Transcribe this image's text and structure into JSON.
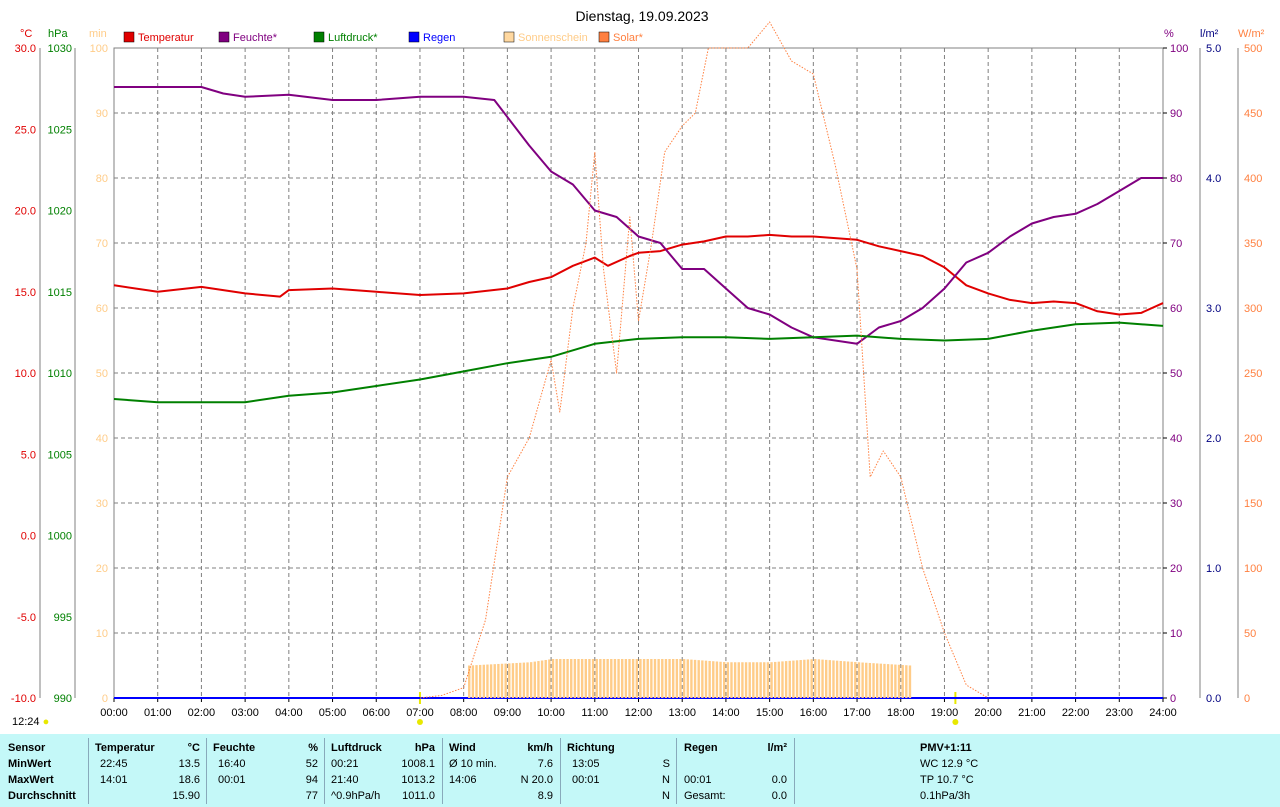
{
  "title": "Dienstag, 19.09.2023",
  "current_time": "12:24",
  "colors": {
    "temperature": "#e00000",
    "humidity": "#800080",
    "pressure": "#008000",
    "rain": "#0000ff",
    "sunshine": "#ffcc88",
    "solar": "#ff8040",
    "stats_bg": "#c4f8f8"
  },
  "legend": [
    {
      "label": "Temperatur",
      "color": "#e00000"
    },
    {
      "label": "Feuchte*",
      "color": "#800080"
    },
    {
      "label": "Luftdruck*",
      "color": "#008000"
    },
    {
      "label": "Regen",
      "color": "#0000ff"
    },
    {
      "label": "Sonnenschein",
      "color": "#ffd8a0"
    },
    {
      "label": "Solar*",
      "color": "#ff8040"
    }
  ],
  "axes": {
    "temp": {
      "unit": "°C",
      "ticks": [
        "30.0",
        "25.0",
        "20.0",
        "15.0",
        "10.0",
        "5.0",
        "0.0",
        "-5.0",
        "-10.0"
      ]
    },
    "pressure": {
      "unit": "hPa",
      "ticks": [
        "1030",
        "1025",
        "1020",
        "1015",
        "1010",
        "1005",
        "1000",
        "995",
        "990"
      ]
    },
    "sunshine": {
      "unit": "min",
      "ticks": [
        "100",
        "90",
        "80",
        "70",
        "60",
        "50",
        "40",
        "30",
        "20",
        "10",
        "0"
      ]
    },
    "humidity": {
      "unit": "%",
      "ticks": [
        "100",
        "90",
        "80",
        "70",
        "60",
        "50",
        "40",
        "30",
        "20",
        "10",
        "0"
      ]
    },
    "rain": {
      "unit": "l/m²",
      "ticks": [
        "5.0",
        "4.0",
        "3.0",
        "2.0",
        "1.0",
        "0.0"
      ]
    },
    "solar": {
      "unit": "W/m²",
      "ticks": [
        "500",
        "450",
        "400",
        "350",
        "300",
        "250",
        "200",
        "150",
        "100",
        "50",
        "0"
      ]
    },
    "x": {
      "ticks": [
        "00:00",
        "01:00",
        "02:00",
        "03:00",
        "04:00",
        "05:00",
        "06:00",
        "07:00",
        "08:00",
        "09:00",
        "10:00",
        "11:00",
        "12:00",
        "13:00",
        "14:00",
        "15:00",
        "16:00",
        "17:00",
        "18:00",
        "19:00",
        "20:00",
        "21:00",
        "22:00",
        "23:00",
        "24:00"
      ]
    }
  },
  "chart_data": {
    "type": "line",
    "title": "Dienstag, 19.09.2023",
    "x_range": [
      0,
      24
    ],
    "grid": true,
    "legend_position": "top",
    "series": [
      {
        "name": "Temperatur",
        "axis": "°C",
        "ylim": [
          -10,
          30
        ],
        "points": [
          [
            0,
            15.4
          ],
          [
            1,
            15.0
          ],
          [
            2,
            15.3
          ],
          [
            3,
            14.9
          ],
          [
            3.8,
            14.7
          ],
          [
            4,
            15.1
          ],
          [
            5,
            15.2
          ],
          [
            6,
            15.0
          ],
          [
            7,
            14.8
          ],
          [
            8,
            14.9
          ],
          [
            9,
            15.2
          ],
          [
            9.5,
            15.6
          ],
          [
            10,
            15.9
          ],
          [
            10.5,
            16.6
          ],
          [
            11,
            17.1
          ],
          [
            11.3,
            16.6
          ],
          [
            11.8,
            17.2
          ],
          [
            12,
            17.4
          ],
          [
            12.5,
            17.5
          ],
          [
            13,
            17.9
          ],
          [
            13.5,
            18.1
          ],
          [
            14,
            18.4
          ],
          [
            14.5,
            18.4
          ],
          [
            15,
            18.5
          ],
          [
            15.5,
            18.4
          ],
          [
            16,
            18.4
          ],
          [
            17,
            18.2
          ],
          [
            17.5,
            17.8
          ],
          [
            18,
            17.5
          ],
          [
            18.5,
            17.2
          ],
          [
            19,
            16.5
          ],
          [
            19.5,
            15.4
          ],
          [
            20,
            14.9
          ],
          [
            20.5,
            14.5
          ],
          [
            21,
            14.3
          ],
          [
            21.5,
            14.4
          ],
          [
            22,
            14.3
          ],
          [
            22.5,
            13.8
          ],
          [
            23,
            13.6
          ],
          [
            23.5,
            13.7
          ],
          [
            24,
            14.3
          ]
        ]
      },
      {
        "name": "Feuchte*",
        "axis": "%",
        "ylim": [
          0,
          100
        ],
        "points": [
          [
            0,
            94
          ],
          [
            1,
            94
          ],
          [
            2,
            94
          ],
          [
            2.5,
            93
          ],
          [
            3,
            92.5
          ],
          [
            4,
            92.8
          ],
          [
            5,
            92
          ],
          [
            6,
            92
          ],
          [
            7,
            92.5
          ],
          [
            8,
            92.5
          ],
          [
            8.7,
            92
          ],
          [
            9.5,
            85
          ],
          [
            10,
            81
          ],
          [
            10.5,
            79
          ],
          [
            11,
            75
          ],
          [
            11.5,
            74
          ],
          [
            12,
            71
          ],
          [
            12.5,
            70
          ],
          [
            13,
            66
          ],
          [
            13.5,
            66
          ],
          [
            14,
            63
          ],
          [
            14.5,
            60
          ],
          [
            15,
            59
          ],
          [
            15.5,
            57
          ],
          [
            16,
            55.5
          ],
          [
            16.5,
            55
          ],
          [
            17,
            54.5
          ],
          [
            17.5,
            57
          ],
          [
            18,
            58
          ],
          [
            18.5,
            60
          ],
          [
            19,
            63
          ],
          [
            19.5,
            67
          ],
          [
            20,
            68.5
          ],
          [
            20.5,
            71
          ],
          [
            21,
            73
          ],
          [
            21.5,
            74
          ],
          [
            22,
            74.5
          ],
          [
            22.5,
            76
          ],
          [
            23,
            78
          ],
          [
            23.5,
            80
          ],
          [
            24,
            80
          ]
        ]
      },
      {
        "name": "Luftdruck*",
        "axis": "hPa",
        "ylim": [
          990,
          1030
        ],
        "points": [
          [
            0,
            1008.4
          ],
          [
            1,
            1008.2
          ],
          [
            2,
            1008.2
          ],
          [
            3,
            1008.2
          ],
          [
            4,
            1008.6
          ],
          [
            5,
            1008.8
          ],
          [
            6,
            1009.2
          ],
          [
            7,
            1009.6
          ],
          [
            8,
            1010.1
          ],
          [
            9,
            1010.6
          ],
          [
            10,
            1011.0
          ],
          [
            11,
            1011.8
          ],
          [
            12,
            1012.1
          ],
          [
            13,
            1012.2
          ],
          [
            14,
            1012.2
          ],
          [
            15,
            1012.1
          ],
          [
            16,
            1012.2
          ],
          [
            17,
            1012.3
          ],
          [
            18,
            1012.1
          ],
          [
            19,
            1012.0
          ],
          [
            20,
            1012.1
          ],
          [
            21,
            1012.6
          ],
          [
            22,
            1013.0
          ],
          [
            23,
            1013.1
          ],
          [
            24,
            1012.9
          ]
        ]
      },
      {
        "name": "Regen",
        "axis": "l/m²",
        "ylim": [
          0,
          5
        ],
        "points": [
          [
            0,
            0
          ],
          [
            24,
            0
          ]
        ]
      },
      {
        "name": "Sonnenschein",
        "axis": "min",
        "ylim": [
          0,
          100
        ],
        "type": "bar",
        "points": [
          [
            8.1,
            5
          ],
          [
            9.5,
            5.5
          ],
          [
            10,
            6
          ],
          [
            11,
            6
          ],
          [
            12,
            6
          ],
          [
            13,
            6
          ],
          [
            14,
            5.5
          ],
          [
            15,
            5.5
          ],
          [
            16,
            6
          ],
          [
            17,
            5.5
          ],
          [
            18.2,
            5
          ]
        ]
      },
      {
        "name": "Solar*",
        "axis": "W/m²",
        "ylim": [
          0,
          500
        ],
        "style": "dotted",
        "points": [
          [
            7,
            0
          ],
          [
            7.5,
            2
          ],
          [
            8,
            8
          ],
          [
            8.5,
            60
          ],
          [
            9,
            170
          ],
          [
            9.5,
            200
          ],
          [
            10,
            260
          ],
          [
            10.2,
            220
          ],
          [
            10.5,
            300
          ],
          [
            10.8,
            350
          ],
          [
            11,
            420
          ],
          [
            11.2,
            330
          ],
          [
            11.5,
            250
          ],
          [
            11.8,
            370
          ],
          [
            12,
            290
          ],
          [
            12.3,
            350
          ],
          [
            12.6,
            420
          ],
          [
            13,
            440
          ],
          [
            13.3,
            450
          ],
          [
            13.6,
            500
          ],
          [
            14,
            500
          ],
          [
            14.5,
            500
          ],
          [
            15,
            520
          ],
          [
            15.5,
            490
          ],
          [
            16,
            480
          ],
          [
            16.5,
            410
          ],
          [
            17,
            330
          ],
          [
            17.3,
            170
          ],
          [
            17.6,
            190
          ],
          [
            18,
            170
          ],
          [
            18.5,
            100
          ],
          [
            19,
            50
          ],
          [
            19.5,
            10
          ],
          [
            20,
            0
          ]
        ]
      }
    ]
  },
  "stats": {
    "headers": {
      "sensor": "Sensor",
      "temp": "Temperatur",
      "temp_unit": "°C",
      "hum": "Feuchte",
      "hum_unit": "%",
      "press": "Luftdruck",
      "press_unit": "hPa",
      "wind": "Wind",
      "wind_unit": "km/h",
      "dir": "Richtung",
      "rain": "Regen",
      "rain_unit": "l/m²",
      "pmv": "PMV+1:11"
    },
    "rows": [
      {
        "label": "MinWert",
        "temp_time": "22:45",
        "temp_val": "13.5",
        "hum_time": "16:40",
        "hum_val": "52",
        "press_time": "00:21",
        "press_val": "1008.1",
        "wind_label": "Ø 10 min.",
        "wind_val": "7.6",
        "dir_time": "13:05",
        "dir_val": "S",
        "rain_time": "",
        "rain_val": "",
        "pmv": "WC 12.9 °C"
      },
      {
        "label": "MaxWert",
        "temp_time": "14:01",
        "temp_val": "18.6",
        "hum_time": "00:01",
        "hum_val": "94",
        "press_time": "21:40",
        "press_val": "1013.2",
        "wind_label": "14:06",
        "wind_val": "N 20.0",
        "dir_time": "00:01",
        "dir_val": "N",
        "rain_time": "00:01",
        "rain_val": "0.0",
        "pmv": "TP 10.7 °C"
      },
      {
        "label": "Durchschnitt",
        "temp_time": "",
        "temp_val": "15.90",
        "hum_time": "",
        "hum_val": "77",
        "press_time": "^0.9hPa/h",
        "press_val": "1011.0",
        "wind_label": "",
        "wind_val": "8.9",
        "dir_time": "",
        "dir_val": "N",
        "rain_time": "Gesamt:",
        "rain_val": "0.0",
        "pmv": "0.1hPa/3h"
      }
    ]
  }
}
